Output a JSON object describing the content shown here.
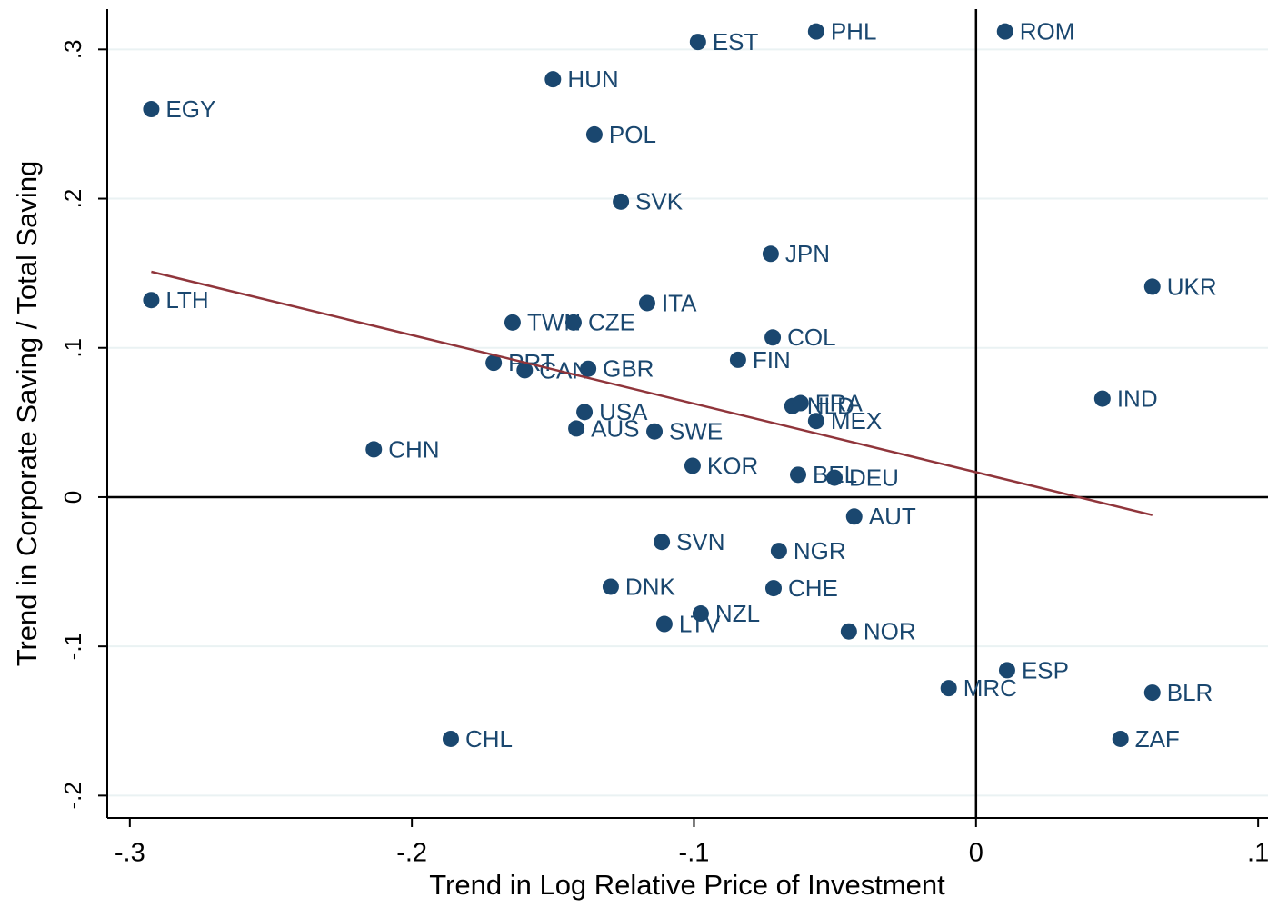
{
  "chart_data": {
    "type": "scatter",
    "x_label": "Trend in Log Relative Price of Investment",
    "y_label": "Trend in Corporate Saving / Total Saving",
    "labels": [
      "EGY",
      "LTH",
      "HUN",
      "EST",
      "PHL",
      "ROM",
      "POL",
      "SVK",
      "JPN",
      "UKR",
      "ITA",
      "TWN",
      "CZE",
      "COL",
      "PRT",
      "CAN",
      "GBR",
      "FIN",
      "IND",
      "USA",
      "NLD",
      "FRA",
      "MEX",
      "AUS",
      "SWE",
      "CHN",
      "KOR",
      "BEL",
      "DEU",
      "AUT",
      "SVN",
      "NGR",
      "DNK",
      "CHE",
      "NZL",
      "LTV",
      "NOR",
      "ESP",
      "MRC",
      "BLR",
      "ZAF",
      "CHL"
    ],
    "x": [
      -0.2924,
      -0.2924,
      -0.15,
      -0.0986,
      -0.0567,
      0.0103,
      -0.1353,
      -0.1259,
      -0.0728,
      0.0625,
      -0.1166,
      -0.1643,
      -0.1427,
      -0.0721,
      -0.171,
      -0.16,
      -0.1375,
      -0.0844,
      0.0448,
      -0.1388,
      -0.0651,
      -0.0622,
      -0.0567,
      -0.1417,
      -0.114,
      -0.2135,
      -0.1005,
      -0.0631,
      -0.0502,
      -0.0432,
      -0.1114,
      -0.0699,
      -0.1295,
      -0.0718,
      -0.0976,
      -0.1105,
      -0.0451,
      0.011,
      -0.0097,
      0.0625,
      0.0512,
      -0.1862
    ],
    "y": [
      0.26,
      0.132,
      0.28,
      0.305,
      0.312,
      0.312,
      0.243,
      0.198,
      0.163,
      0.141,
      0.13,
      0.117,
      0.117,
      0.107,
      0.09,
      0.085,
      0.086,
      0.092,
      0.066,
      0.057,
      0.061,
      0.063,
      0.051,
      0.046,
      0.044,
      0.032,
      0.021,
      0.015,
      0.013,
      -0.013,
      -0.03,
      -0.036,
      -0.06,
      -0.061,
      -0.078,
      -0.085,
      -0.09,
      -0.116,
      -0.128,
      -0.131,
      -0.162,
      -0.162
    ],
    "color": "#1a476f",
    "fit_line": {
      "x": [
        -0.2924,
        0.0625
      ],
      "y": [
        0.151,
        -0.012
      ],
      "color": "#90353b"
    },
    "vline": 0,
    "hline": 0,
    "xlim": [
      -0.308,
      0.1035
    ],
    "ylim": [
      -0.215,
      0.327
    ],
    "xticks": [
      {
        "value": -0.3,
        "label": "-.3"
      },
      {
        "value": -0.2,
        "label": "-.2"
      },
      {
        "value": -0.1,
        "label": "-.1"
      },
      0,
      {
        "value": 0.1,
        "label": ".1"
      }
    ],
    "yticks": [
      {
        "value": -0.2,
        "label": "-.2"
      },
      {
        "value": -0.1,
        "label": "-.1"
      },
      0,
      {
        "value": 0.1,
        "label": ".1"
      },
      {
        "value": 0.2,
        "label": ".2"
      },
      {
        "value": 0.3,
        "label": ".3"
      }
    ],
    "grid": true
  }
}
